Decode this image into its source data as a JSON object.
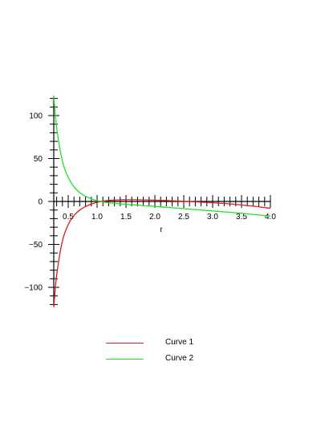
{
  "chart_data": {
    "type": "line",
    "xlabel": "r",
    "ylabel": "",
    "xlim": [
      0.25,
      4.0
    ],
    "ylim": [
      -123,
      123
    ],
    "x_ticks": [
      "0.5",
      "1.0",
      "1.5",
      "2.0",
      "2.5",
      "3.0",
      "3.5",
      "4.0"
    ],
    "y_ticks": [
      "100",
      "50",
      "0",
      "-50",
      "-100"
    ],
    "series": [
      {
        "name": "Curve 1",
        "color": "#d81b1b",
        "x": [
          0.25,
          0.3,
          0.4,
          0.5,
          0.6,
          0.7,
          0.8,
          0.9,
          1.0,
          1.1,
          1.2,
          1.3,
          1.4,
          1.5,
          1.75,
          2.0,
          2.25,
          2.5,
          2.75,
          3.0,
          3.25,
          3.5,
          3.75,
          4.0
        ],
        "y": [
          -123,
          -86,
          -46,
          -27,
          -16.5,
          -10,
          -6,
          -3,
          -1,
          0.3,
          1.1,
          1.6,
          1.9,
          2.0,
          1.9,
          1.5,
          0.9,
          0.2,
          -0.6,
          -1.5,
          -2.6,
          -4.1,
          -5.8,
          -8.0
        ]
      },
      {
        "name": "Curve 2",
        "color": "#22e022",
        "x": [
          0.25,
          0.3,
          0.4,
          0.5,
          0.6,
          0.7,
          0.8,
          0.9,
          1.0,
          1.1,
          1.2,
          1.4,
          1.6,
          1.8,
          2.0,
          2.25,
          2.5,
          2.75,
          3.0,
          3.25,
          3.5,
          3.75,
          4.0
        ],
        "y": [
          123,
          86,
          47,
          28,
          17,
          10.3,
          6,
          3,
          1,
          -0.6,
          -1.5,
          -2.8,
          -3.8,
          -4.8,
          -5.8,
          -7.0,
          -8.4,
          -9.7,
          -11.1,
          -12.4,
          -13.8,
          -15.4,
          -17.0
        ]
      }
    ],
    "legend_position": "bottom"
  }
}
